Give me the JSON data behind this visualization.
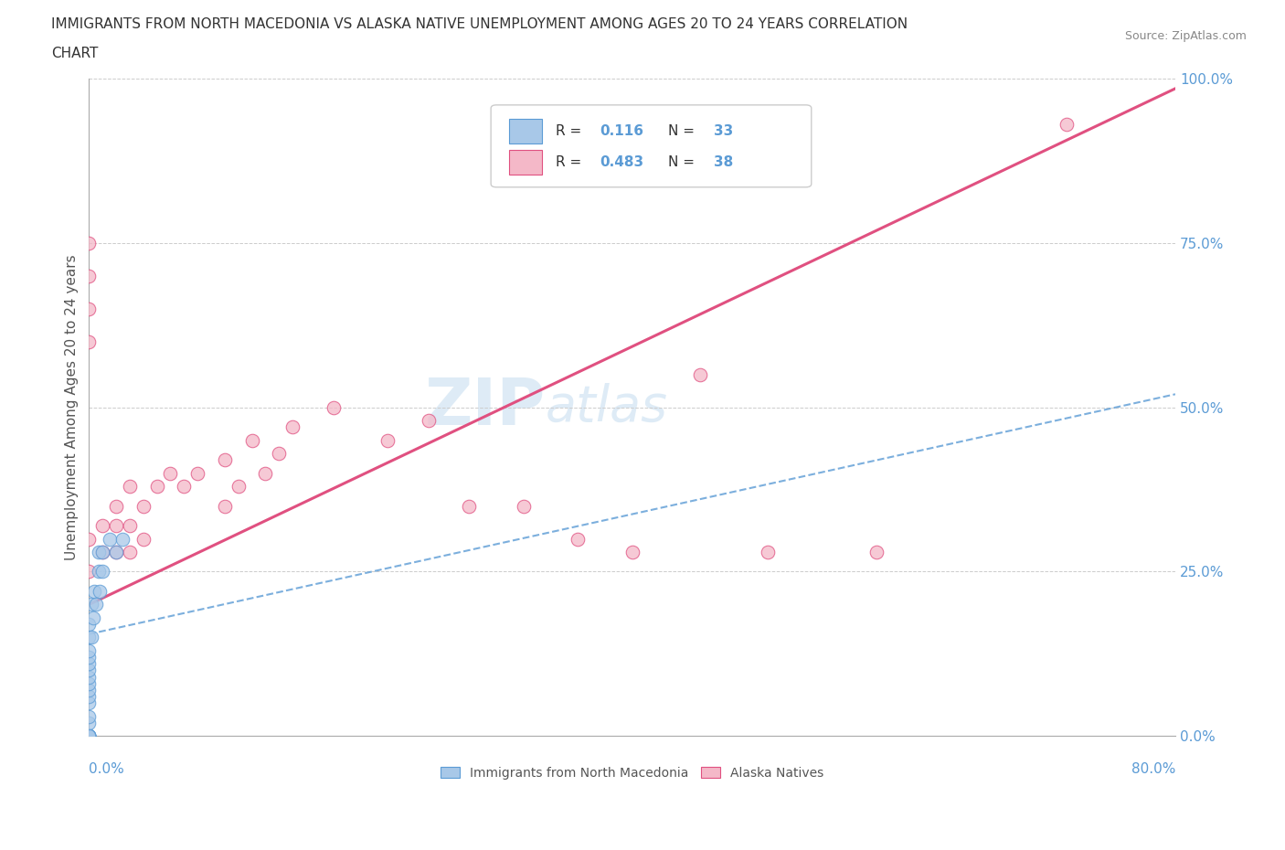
{
  "title_line1": "IMMIGRANTS FROM NORTH MACEDONIA VS ALASKA NATIVE UNEMPLOYMENT AMONG AGES 20 TO 24 YEARS CORRELATION",
  "title_line2": "CHART",
  "source": "Source: ZipAtlas.com",
  "ylabel_label": "Unemployment Among Ages 20 to 24 years",
  "xlim": [
    0,
    0.8
  ],
  "ylim": [
    0,
    1.0
  ],
  "yticks": [
    0.0,
    0.25,
    0.5,
    0.75,
    1.0
  ],
  "ytick_labels": [
    "0.0%",
    "25.0%",
    "50.0%",
    "75.0%",
    "100.0%"
  ],
  "watermark_zip": "ZIP",
  "watermark_atlas": "atlas",
  "legend1_r": "0.116",
  "legend1_n": "33",
  "legend2_r": "0.483",
  "legend2_n": "38",
  "legend1_label": "Immigrants from North Macedonia",
  "legend2_label": "Alaska Natives",
  "blue_fill": "#a8c8e8",
  "blue_edge": "#5b9bd5",
  "pink_fill": "#f4b8c8",
  "pink_edge": "#e05080",
  "blue_line_color": "#5b9bd5",
  "pink_line_color": "#e05080",
  "blue_scatter_x": [
    0.0,
    0.0,
    0.0,
    0.0,
    0.0,
    0.0,
    0.0,
    0.0,
    0.0,
    0.0,
    0.0,
    0.0,
    0.0,
    0.0,
    0.0,
    0.0,
    0.0,
    0.0,
    0.0,
    0.0,
    0.002,
    0.002,
    0.003,
    0.004,
    0.005,
    0.007,
    0.007,
    0.008,
    0.01,
    0.01,
    0.015,
    0.02,
    0.025
  ],
  "blue_scatter_y": [
    0.0,
    0.0,
    0.0,
    0.0,
    0.0,
    0.0,
    0.0,
    0.02,
    0.03,
    0.05,
    0.06,
    0.07,
    0.08,
    0.09,
    0.1,
    0.11,
    0.12,
    0.13,
    0.15,
    0.17,
    0.15,
    0.2,
    0.18,
    0.22,
    0.2,
    0.25,
    0.28,
    0.22,
    0.25,
    0.28,
    0.3,
    0.28,
    0.3
  ],
  "pink_scatter_x": [
    0.0,
    0.0,
    0.0,
    0.0,
    0.0,
    0.0,
    0.01,
    0.01,
    0.02,
    0.02,
    0.02,
    0.03,
    0.03,
    0.03,
    0.04,
    0.04,
    0.05,
    0.06,
    0.07,
    0.08,
    0.1,
    0.1,
    0.11,
    0.12,
    0.13,
    0.14,
    0.15,
    0.18,
    0.22,
    0.25,
    0.28,
    0.32,
    0.36,
    0.4,
    0.45,
    0.5,
    0.58,
    0.72
  ],
  "pink_scatter_y": [
    0.25,
    0.3,
    0.6,
    0.65,
    0.7,
    0.75,
    0.28,
    0.32,
    0.28,
    0.32,
    0.35,
    0.28,
    0.32,
    0.38,
    0.3,
    0.35,
    0.38,
    0.4,
    0.38,
    0.4,
    0.35,
    0.42,
    0.38,
    0.45,
    0.4,
    0.43,
    0.47,
    0.5,
    0.45,
    0.48,
    0.35,
    0.35,
    0.3,
    0.28,
    0.55,
    0.28,
    0.28,
    0.93
  ],
  "blue_line_x0": 0.0,
  "blue_line_x1": 0.8,
  "blue_line_y0": 0.155,
  "blue_line_y1": 0.52,
  "pink_line_x0": 0.0,
  "pink_line_x1": 0.8,
  "pink_line_y0": 0.2,
  "pink_line_y1": 0.985
}
